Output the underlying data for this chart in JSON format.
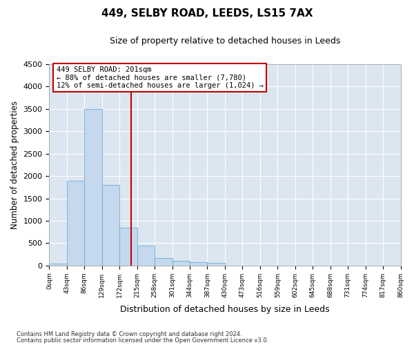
{
  "title": "449, SELBY ROAD, LEEDS, LS15 7AX",
  "subtitle": "Size of property relative to detached houses in Leeds",
  "xlabel": "Distribution of detached houses by size in Leeds",
  "ylabel": "Number of detached properties",
  "bar_values": [
    50,
    1900,
    3500,
    1800,
    850,
    450,
    160,
    100,
    70,
    60,
    0,
    0,
    0,
    0,
    0,
    0,
    0,
    0,
    0,
    0
  ],
  "bar_labels": [
    "0sqm",
    "43sqm",
    "86sqm",
    "129sqm",
    "172sqm",
    "215sqm",
    "258sqm",
    "301sqm",
    "344sqm",
    "387sqm",
    "430sqm",
    "473sqm",
    "516sqm",
    "559sqm",
    "602sqm",
    "645sqm",
    "688sqm",
    "731sqm",
    "774sqm",
    "817sqm",
    "860sqm"
  ],
  "bar_color": "#c5d8ee",
  "bar_edge_color": "#6aacd6",
  "vline_color": "#c00000",
  "vline_x_index": 4.674,
  "annotation_line1": "449 SELBY ROAD: 201sqm",
  "annotation_line2": "← 88% of detached houses are smaller (7,780)",
  "annotation_line3": "12% of semi-detached houses are larger (1,024) →",
  "annotation_box_edge_color": "#c00000",
  "ylim_max": 4500,
  "yticks": [
    0,
    500,
    1000,
    1500,
    2000,
    2500,
    3000,
    3500,
    4000,
    4500
  ],
  "footer_line1": "Contains HM Land Registry data © Crown copyright and database right 2024.",
  "footer_line2": "Contains public sector information licensed under the Open Government Licence v3.0.",
  "fig_bg_color": "#ffffff",
  "plot_bg_color": "#dce6f1"
}
